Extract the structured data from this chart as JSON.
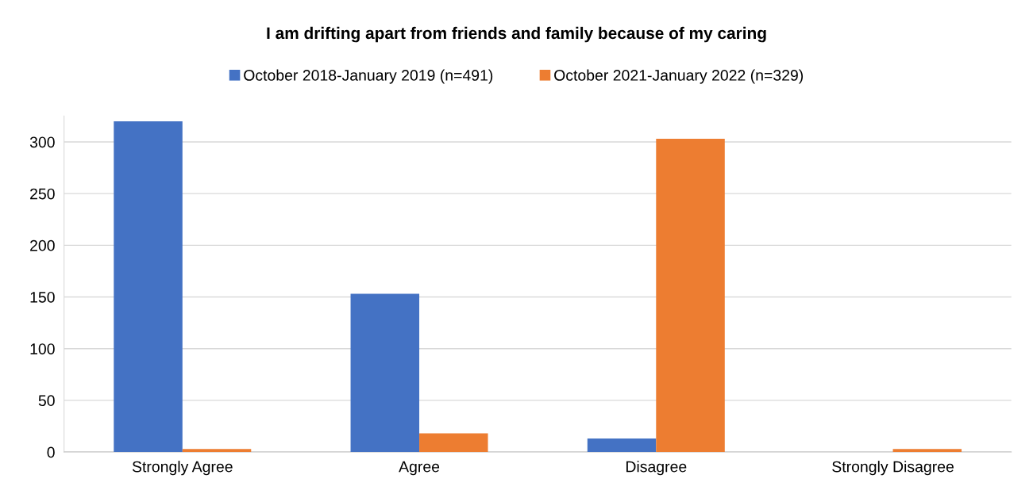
{
  "chart_data": {
    "type": "bar",
    "title": "I am drifting apart from friends and family because of my caring",
    "categories": [
      "Strongly Agree",
      "Agree",
      "Disagree",
      "Strongly Disagree"
    ],
    "series": [
      {
        "name": "October 2018-January 2019 (n=491)",
        "color": "#4472c4",
        "values": [
          320,
          153,
          13,
          0
        ]
      },
      {
        "name": "October 2021-January 2022 (n=329)",
        "color": "#ed7d31",
        "values": [
          3,
          18,
          303,
          3
        ]
      }
    ],
    "ylim": [
      0,
      325
    ],
    "yticks": [
      0,
      50,
      100,
      150,
      200,
      250,
      300
    ],
    "grid": "y",
    "legend": "top"
  }
}
